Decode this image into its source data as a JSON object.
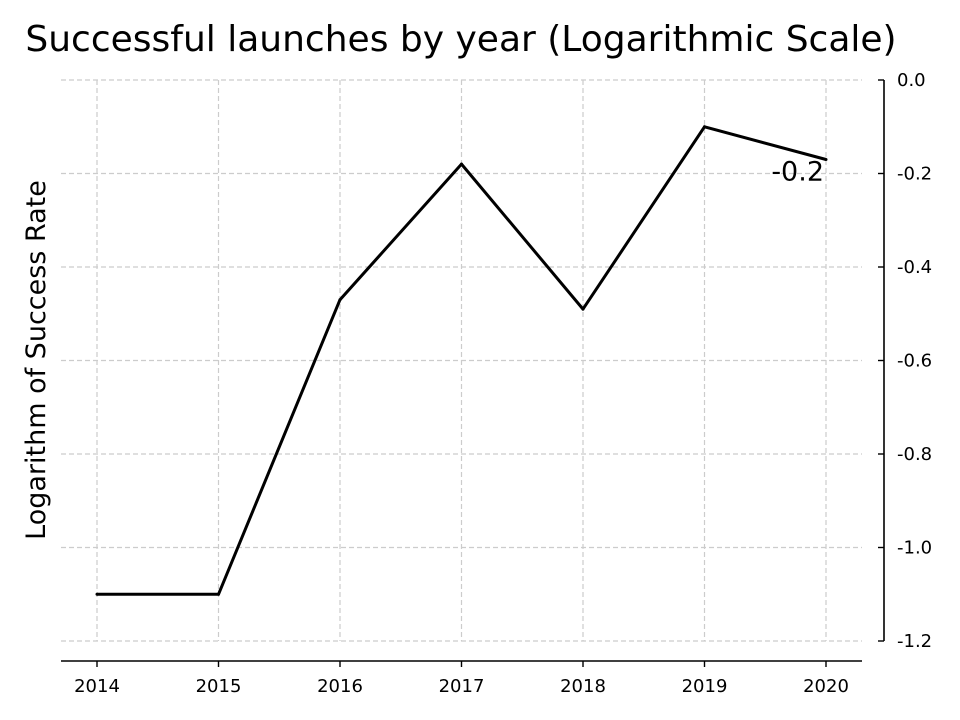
{
  "chart_data": {
    "type": "line",
    "title": "Successful launches by year (Logarithmic Scale)",
    "xlabel": "",
    "ylabel": "Logarithm of Success Rate",
    "categories": [
      "2014",
      "2015",
      "2016",
      "2017",
      "2018",
      "2019",
      "2020"
    ],
    "series": [
      {
        "values": [
          -1.1,
          -1.1,
          -0.47,
          -0.18,
          -0.49,
          -0.1,
          -0.17
        ]
      }
    ],
    "ylim": [
      -1.2,
      0.0
    ],
    "yticks": [
      0.0,
      -0.2,
      -0.4,
      -0.6,
      -0.8,
      -1.0,
      -1.2
    ],
    "ytick_labels": [
      "0.0",
      "-0.2",
      "-0.4",
      "-0.6",
      "-0.8",
      "-1.0",
      "-1.2"
    ],
    "y_axis_side": "right",
    "grid": true,
    "annotation": {
      "text": "-0.2",
      "category": "2020",
      "series": 0
    },
    "line_color": "#000000"
  }
}
